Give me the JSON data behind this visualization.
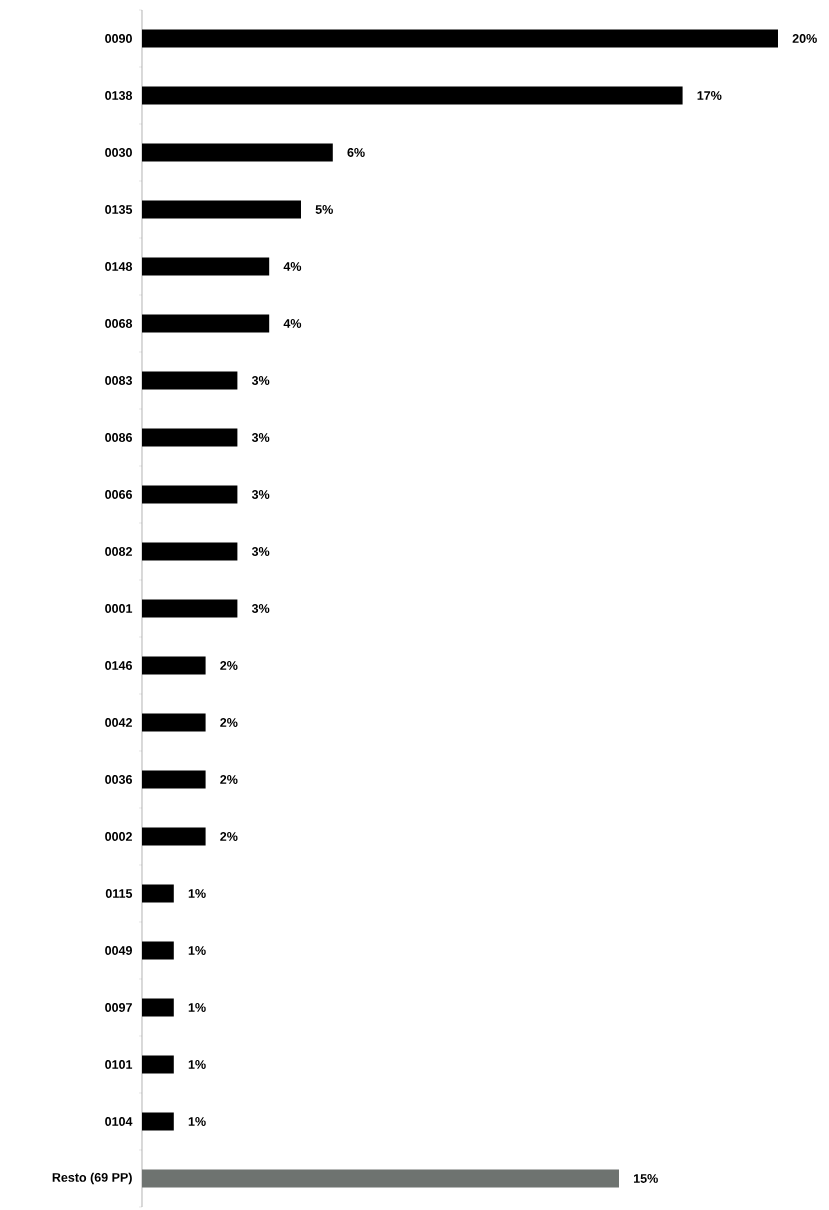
{
  "chart_data": {
    "type": "bar",
    "orientation": "horizontal",
    "categories": [
      "0090",
      "0138",
      "0030",
      "0135",
      "0148",
      "0068",
      "0083",
      "0086",
      "0066",
      "0082",
      "0001",
      "0146",
      "0042",
      "0036",
      "0002",
      "0115",
      "0049",
      "0097",
      "0101",
      "0104",
      "Resto (69 PP)"
    ],
    "values": [
      20,
      17,
      6,
      5,
      4,
      4,
      3,
      3,
      3,
      3,
      3,
      2,
      2,
      2,
      2,
      1,
      1,
      1,
      1,
      1,
      15
    ],
    "value_labels": [
      "20%",
      "17%",
      "6%",
      "5%",
      "4%",
      "4%",
      "3%",
      "3%",
      "3%",
      "3%",
      "3%",
      "2%",
      "2%",
      "2%",
      "2%",
      "1%",
      "1%",
      "1%",
      "1%",
      "1%",
      "15%"
    ],
    "colors": [
      "#000000",
      "#000000",
      "#000000",
      "#000000",
      "#000000",
      "#000000",
      "#000000",
      "#000000",
      "#000000",
      "#000000",
      "#000000",
      "#000000",
      "#000000",
      "#000000",
      "#000000",
      "#000000",
      "#000000",
      "#000000",
      "#000000",
      "#000000",
      "#6e7370"
    ]
  }
}
